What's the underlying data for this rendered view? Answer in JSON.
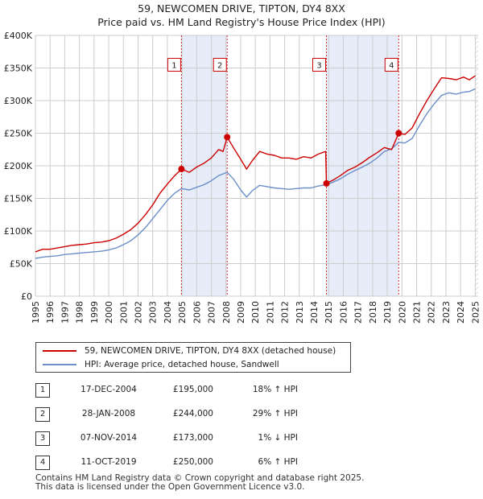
{
  "title_line1": "59, NEWCOMEN DRIVE, TIPTON, DY4 8XX",
  "title_line2": "Price paid vs. HM Land Registry's House Price Index (HPI)",
  "colors": {
    "property": "#cc0000",
    "hpi": "#6b8fc9",
    "shade": "#e6ecf8",
    "grid": "#cccccc",
    "marker_line": "#cc0000"
  },
  "chart_data": {
    "type": "line",
    "title": "Price paid vs. HM Land Registry's House Price Index (HPI)",
    "xlim": [
      1995,
      2025.2
    ],
    "ylim": [
      0,
      400000
    ],
    "x_ticks": [
      1995,
      1996,
      1997,
      1998,
      1999,
      2000,
      2001,
      2002,
      2003,
      2004,
      2005,
      2006,
      2007,
      2008,
      2009,
      2010,
      2011,
      2012,
      2013,
      2014,
      2015,
      2016,
      2017,
      2018,
      2019,
      2020,
      2021,
      2022,
      2023,
      2024,
      2025
    ],
    "y_ticks": [
      {
        "value": 0,
        "label": "£0"
      },
      {
        "value": 50000,
        "label": "£50K"
      },
      {
        "value": 100000,
        "label": "£100K"
      },
      {
        "value": 150000,
        "label": "£150K"
      },
      {
        "value": 200000,
        "label": "£200K"
      },
      {
        "value": 250000,
        "label": "£250K"
      },
      {
        "value": 300000,
        "label": "£300K"
      },
      {
        "value": 350000,
        "label": "£350K"
      },
      {
        "value": 400000,
        "label": "£400K"
      }
    ],
    "series": [
      {
        "name": "59, NEWCOMEN DRIVE, TIPTON, DY4 8XX (detached house)",
        "color": "#cc0000",
        "points": [
          [
            1995.0,
            68000
          ],
          [
            1995.5,
            72000
          ],
          [
            1996.0,
            72000
          ],
          [
            1996.5,
            74000
          ],
          [
            1997.0,
            76000
          ],
          [
            1997.5,
            78000
          ],
          [
            1998.0,
            79000
          ],
          [
            1998.5,
            80000
          ],
          [
            1999.0,
            82000
          ],
          [
            1999.5,
            83000
          ],
          [
            2000.0,
            85000
          ],
          [
            2000.5,
            89000
          ],
          [
            2001.0,
            95000
          ],
          [
            2001.5,
            102000
          ],
          [
            2002.0,
            112000
          ],
          [
            2002.5,
            125000
          ],
          [
            2003.0,
            140000
          ],
          [
            2003.5,
            158000
          ],
          [
            2004.0,
            172000
          ],
          [
            2004.5,
            185000
          ],
          [
            2004.96,
            195000
          ],
          [
            2005.5,
            190000
          ],
          [
            2006.0,
            198000
          ],
          [
            2006.5,
            204000
          ],
          [
            2007.0,
            212000
          ],
          [
            2007.5,
            225000
          ],
          [
            2007.8,
            222000
          ],
          [
            2008.08,
            244000
          ],
          [
            2008.5,
            228000
          ],
          [
            2009.0,
            210000
          ],
          [
            2009.4,
            195000
          ],
          [
            2009.8,
            208000
          ],
          [
            2010.3,
            222000
          ],
          [
            2010.8,
            218000
          ],
          [
            2011.3,
            216000
          ],
          [
            2011.8,
            212000
          ],
          [
            2012.3,
            212000
          ],
          [
            2012.8,
            210000
          ],
          [
            2013.3,
            214000
          ],
          [
            2013.8,
            212000
          ],
          [
            2014.3,
            218000
          ],
          [
            2014.8,
            222000
          ],
          [
            2014.85,
            173000
          ],
          [
            2015.3,
            178000
          ],
          [
            2015.8,
            185000
          ],
          [
            2016.3,
            193000
          ],
          [
            2016.8,
            198000
          ],
          [
            2017.3,
            205000
          ],
          [
            2017.8,
            213000
          ],
          [
            2018.3,
            220000
          ],
          [
            2018.8,
            228000
          ],
          [
            2019.3,
            225000
          ],
          [
            2019.78,
            250000
          ],
          [
            2020.2,
            248000
          ],
          [
            2020.7,
            258000
          ],
          [
            2021.2,
            280000
          ],
          [
            2021.7,
            300000
          ],
          [
            2022.2,
            318000
          ],
          [
            2022.7,
            335000
          ],
          [
            2023.2,
            334000
          ],
          [
            2023.7,
            332000
          ],
          [
            2024.2,
            336000
          ],
          [
            2024.6,
            332000
          ],
          [
            2025.0,
            338000
          ]
        ]
      },
      {
        "name": "HPI: Average price, detached house, Sandwell",
        "color": "#6b8fc9",
        "points": [
          [
            1995.0,
            58000
          ],
          [
            1995.5,
            60000
          ],
          [
            1996.0,
            61000
          ],
          [
            1996.5,
            62000
          ],
          [
            1997.0,
            64000
          ],
          [
            1997.5,
            65000
          ],
          [
            1998.0,
            66000
          ],
          [
            1998.5,
            67000
          ],
          [
            1999.0,
            68000
          ],
          [
            1999.5,
            69000
          ],
          [
            2000.0,
            71000
          ],
          [
            2000.5,
            74000
          ],
          [
            2001.0,
            79000
          ],
          [
            2001.5,
            85000
          ],
          [
            2002.0,
            94000
          ],
          [
            2002.5,
            105000
          ],
          [
            2003.0,
            119000
          ],
          [
            2003.5,
            133000
          ],
          [
            2004.0,
            147000
          ],
          [
            2004.5,
            158000
          ],
          [
            2004.96,
            165000
          ],
          [
            2005.5,
            163000
          ],
          [
            2006.0,
            167000
          ],
          [
            2006.5,
            171000
          ],
          [
            2007.0,
            177000
          ],
          [
            2007.5,
            185000
          ],
          [
            2008.08,
            190000
          ],
          [
            2008.5,
            180000
          ],
          [
            2009.0,
            163000
          ],
          [
            2009.4,
            152000
          ],
          [
            2009.8,
            162000
          ],
          [
            2010.3,
            170000
          ],
          [
            2010.8,
            168000
          ],
          [
            2011.3,
            166000
          ],
          [
            2011.8,
            165000
          ],
          [
            2012.3,
            164000
          ],
          [
            2012.8,
            165000
          ],
          [
            2013.3,
            166000
          ],
          [
            2013.8,
            166000
          ],
          [
            2014.3,
            169000
          ],
          [
            2014.85,
            171000
          ],
          [
            2015.3,
            175000
          ],
          [
            2015.8,
            180000
          ],
          [
            2016.3,
            187000
          ],
          [
            2016.8,
            193000
          ],
          [
            2017.3,
            198000
          ],
          [
            2017.8,
            204000
          ],
          [
            2018.3,
            212000
          ],
          [
            2018.8,
            222000
          ],
          [
            2019.3,
            226000
          ],
          [
            2019.78,
            236000
          ],
          [
            2020.2,
            235000
          ],
          [
            2020.7,
            242000
          ],
          [
            2021.2,
            262000
          ],
          [
            2021.7,
            280000
          ],
          [
            2022.2,
            295000
          ],
          [
            2022.7,
            308000
          ],
          [
            2023.2,
            312000
          ],
          [
            2023.7,
            310000
          ],
          [
            2024.2,
            313000
          ],
          [
            2024.6,
            314000
          ],
          [
            2025.0,
            318000
          ]
        ]
      }
    ],
    "sales": [
      {
        "num": "1",
        "x": 2004.96,
        "price": 195000
      },
      {
        "num": "2",
        "x": 2008.08,
        "price": 244000
      },
      {
        "num": "3",
        "x": 2014.85,
        "price": 173000
      },
      {
        "num": "4",
        "x": 2019.78,
        "price": 250000
      }
    ],
    "shaded_ranges": [
      [
        2004.96,
        2008.08
      ],
      [
        2014.85,
        2019.78
      ]
    ],
    "marker_box_y": 355000,
    "future_hatch_from": 2025.0
  },
  "legend": {
    "property_label": "59, NEWCOMEN DRIVE, TIPTON, DY4 8XX (detached house)",
    "hpi_label": "HPI: Average price, detached house, Sandwell"
  },
  "sales_table": [
    {
      "num": "1",
      "date": "17-DEC-2004",
      "price": "£195,000",
      "hpi": "18% ↑ HPI"
    },
    {
      "num": "2",
      "date": "28-JAN-2008",
      "price": "£244,000",
      "hpi": "29% ↑ HPI"
    },
    {
      "num": "3",
      "date": "07-NOV-2014",
      "price": "£173,000",
      "hpi": "1% ↓ HPI"
    },
    {
      "num": "4",
      "date": "11-OCT-2019",
      "price": "£250,000",
      "hpi": "6% ↑ HPI"
    }
  ],
  "footer": {
    "line1": "Contains HM Land Registry data © Crown copyright and database right 2025.",
    "line2": "This data is licensed under the Open Government Licence v3.0."
  }
}
